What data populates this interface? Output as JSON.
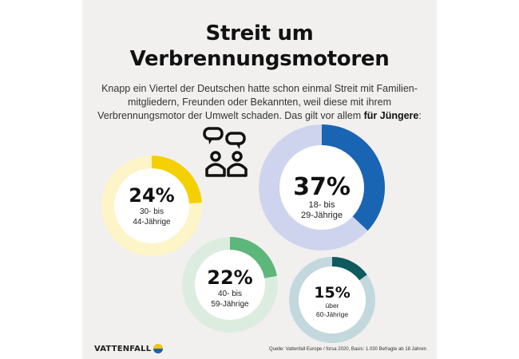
{
  "title_line1": "Streit um",
  "title_line2": "Verbrennungsmotoren",
  "intro": {
    "text": "Knapp ein Viertel der Deutschen hatte schon einmal Streit mit Familien-mitgliedern, Freunden oder Bekannten, weil diese mit ihrem Verbrennungsmotor der Umwelt schaden. Das gilt vor allem ",
    "bold": "für Jüngere",
    "end": ":"
  },
  "chart_data": {
    "type": "pie",
    "variant": "donut",
    "series": [
      {
        "name": "18- bis 29-Jährige",
        "value": 37,
        "label": "37%",
        "line1": "18- bis",
        "line2": "29-Jährige",
        "color": "#1a64b4",
        "track": "#cfd4ee"
      },
      {
        "name": "30- bis 44-Jährige",
        "value": 24,
        "label": "24%",
        "line1": "30- bis",
        "line2": "44-Jährige",
        "color": "#f5d000",
        "track": "#fdf4c8"
      },
      {
        "name": "40- bis 59-Jährige",
        "value": 22,
        "label": "22%",
        "line1": "40- bis",
        "line2": "59-Jährige",
        "color": "#5db67a",
        "track": "#dcede0"
      },
      {
        "name": "über 60-Jährige",
        "value": 15,
        "label": "15%",
        "line1": "über",
        "line2": "60-Jährige",
        "color": "#0e5a5e",
        "track": "#c3d8dc"
      }
    ]
  },
  "icon": "two-people-with-speech-bubbles-icon",
  "brand": "VATTENFALL",
  "source": "Quelle: Vattenfall Europe / forsa 2020, Basis: 1.030 Befragte ab 18 Jahren"
}
